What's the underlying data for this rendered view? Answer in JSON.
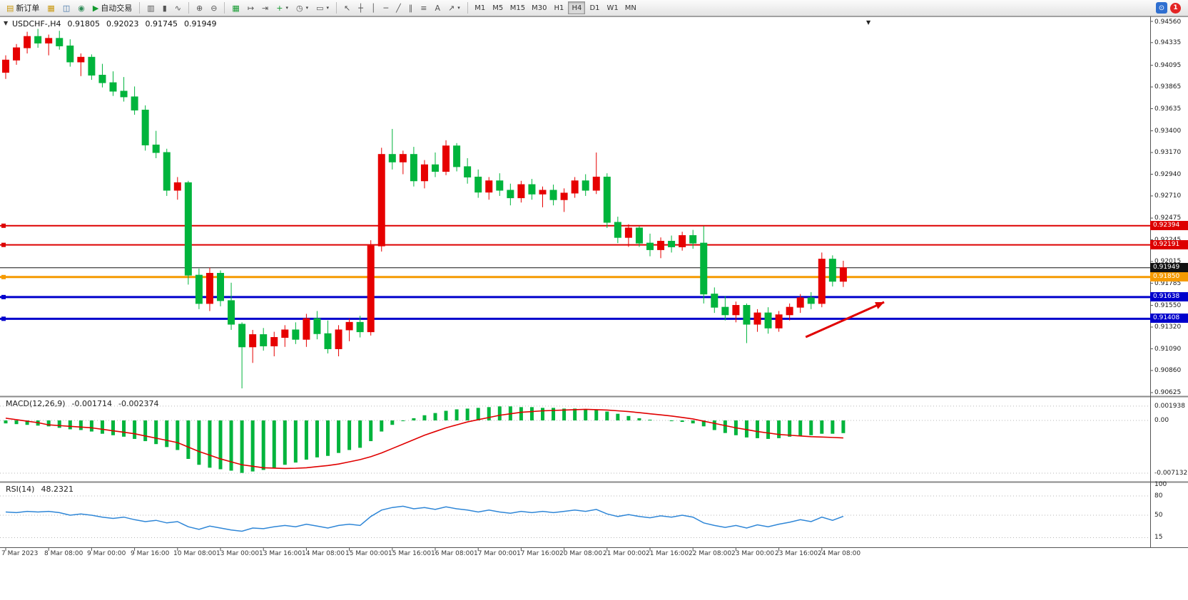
{
  "toolbar": {
    "new_order_label": "新订单",
    "autotrading_label": "自动交易",
    "timeframes": [
      "M1",
      "M5",
      "M15",
      "M30",
      "H1",
      "H4",
      "D1",
      "W1",
      "MN"
    ],
    "active_timeframe": "H4",
    "notification_count": "1"
  },
  "chart_data": {
    "type": "candlestick",
    "header": {
      "symbol_period": "USDCHF-,H4",
      "open": "0.91805",
      "high": "0.92023",
      "low": "0.91745",
      "close": "0.91949"
    },
    "up_color": "#e60000",
    "down_color": "#00b43c",
    "ylim": [
      0.90625,
      0.9456
    ],
    "price_tick_labels": [
      "0.94560",
      "0.94335",
      "0.94095",
      "0.93865",
      "0.93635",
      "0.93400",
      "0.93170",
      "0.92940",
      "0.92710",
      "0.92475",
      "0.92245",
      "0.92015",
      "0.91785",
      "0.91550",
      "0.91320",
      "0.91090",
      "0.90860",
      "0.90625"
    ],
    "time_labels": [
      "7 Mar 2023",
      "8 Mar 08:00",
      "9 Mar 00:00",
      "9 Mar 16:00",
      "10 Mar 08:00",
      "13 Mar 00:00",
      "13 Mar 16:00",
      "14 Mar 08:00",
      "15 Mar 00:00",
      "15 Mar 16:00",
      "16 Mar 08:00",
      "17 Mar 00:00",
      "17 Mar 16:00",
      "20 Mar 08:00",
      "21 Mar 00:00",
      "21 Mar 16:00",
      "22 Mar 08:00",
      "23 Mar 00:00",
      "23 Mar 16:00",
      "24 Mar 08:00"
    ],
    "label_every_n_candles": 4,
    "candles": [
      [
        0.9402,
        0.942,
        0.9395,
        0.9415
      ],
      [
        0.9415,
        0.9432,
        0.941,
        0.9428
      ],
      [
        0.9428,
        0.9445,
        0.9422,
        0.944
      ],
      [
        0.944,
        0.9448,
        0.9428,
        0.9433
      ],
      [
        0.9433,
        0.9442,
        0.942,
        0.9438
      ],
      [
        0.9438,
        0.9446,
        0.9426,
        0.943
      ],
      [
        0.943,
        0.9437,
        0.9408,
        0.9413
      ],
      [
        0.9413,
        0.9422,
        0.9398,
        0.9418
      ],
      [
        0.9418,
        0.9421,
        0.9394,
        0.9399
      ],
      [
        0.9399,
        0.9411,
        0.9386,
        0.9391
      ],
      [
        0.9391,
        0.9403,
        0.9377,
        0.9382
      ],
      [
        0.9382,
        0.9397,
        0.9371,
        0.9376
      ],
      [
        0.9376,
        0.9387,
        0.9357,
        0.9362
      ],
      [
        0.9362,
        0.9367,
        0.9319,
        0.9325
      ],
      [
        0.9325,
        0.934,
        0.9311,
        0.9317
      ],
      [
        0.9317,
        0.9321,
        0.9271,
        0.9277
      ],
      [
        0.9277,
        0.9291,
        0.9267,
        0.9285
      ],
      [
        0.9285,
        0.9287,
        0.9177,
        0.9187
      ],
      [
        0.9187,
        0.9194,
        0.9151,
        0.9157
      ],
      [
        0.9157,
        0.9195,
        0.9149,
        0.9189
      ],
      [
        0.9189,
        0.9192,
        0.9154,
        0.916
      ],
      [
        0.916,
        0.9179,
        0.9129,
        0.9135
      ],
      [
        0.9135,
        0.9137,
        0.9067,
        0.9111
      ],
      [
        0.9111,
        0.9129,
        0.9094,
        0.9124
      ],
      [
        0.9124,
        0.9131,
        0.9107,
        0.9112
      ],
      [
        0.9112,
        0.9127,
        0.9101,
        0.9121
      ],
      [
        0.9121,
        0.9134,
        0.9111,
        0.9129
      ],
      [
        0.9129,
        0.9137,
        0.9114,
        0.9119
      ],
      [
        0.9119,
        0.9146,
        0.9111,
        0.9141
      ],
      [
        0.9141,
        0.9149,
        0.9119,
        0.9125
      ],
      [
        0.9125,
        0.9139,
        0.9104,
        0.9109
      ],
      [
        0.9109,
        0.9134,
        0.9101,
        0.9129
      ],
      [
        0.9129,
        0.9141,
        0.9117,
        0.9137
      ],
      [
        0.9137,
        0.9144,
        0.9121,
        0.9127
      ],
      [
        0.9127,
        0.9224,
        0.9123,
        0.9218
      ],
      [
        0.9218,
        0.9322,
        0.9212,
        0.9315
      ],
      [
        0.9315,
        0.9342,
        0.9299,
        0.9307
      ],
      [
        0.9307,
        0.9319,
        0.9294,
        0.9315
      ],
      [
        0.9315,
        0.9323,
        0.9281,
        0.9287
      ],
      [
        0.9287,
        0.9309,
        0.9279,
        0.9304
      ],
      [
        0.9304,
        0.9317,
        0.9291,
        0.9297
      ],
      [
        0.9297,
        0.933,
        0.9293,
        0.9324
      ],
      [
        0.9324,
        0.9327,
        0.9297,
        0.9302
      ],
      [
        0.9302,
        0.9311,
        0.9284,
        0.9291
      ],
      [
        0.9291,
        0.9299,
        0.9269,
        0.9275
      ],
      [
        0.9275,
        0.9291,
        0.9267,
        0.9287
      ],
      [
        0.9287,
        0.9295,
        0.9271,
        0.9277
      ],
      [
        0.9277,
        0.9284,
        0.9261,
        0.9269
      ],
      [
        0.9269,
        0.9287,
        0.9264,
        0.9283
      ],
      [
        0.9283,
        0.9289,
        0.9267,
        0.9273
      ],
      [
        0.9273,
        0.9281,
        0.9259,
        0.9277
      ],
      [
        0.9277,
        0.9283,
        0.9261,
        0.9267
      ],
      [
        0.9267,
        0.9279,
        0.9254,
        0.9274
      ],
      [
        0.9274,
        0.9291,
        0.9269,
        0.9287
      ],
      [
        0.9287,
        0.9294,
        0.9271,
        0.9277
      ],
      [
        0.9277,
        0.9317,
        0.9273,
        0.9291
      ],
      [
        0.9291,
        0.9295,
        0.9237,
        0.9243
      ],
      [
        0.9243,
        0.9249,
        0.9221,
        0.9227
      ],
      [
        0.9227,
        0.9241,
        0.9217,
        0.9237
      ],
      [
        0.9237,
        0.9239,
        0.9217,
        0.9221
      ],
      [
        0.9221,
        0.9231,
        0.9207,
        0.9214
      ],
      [
        0.9214,
        0.9227,
        0.9205,
        0.9223
      ],
      [
        0.9223,
        0.9229,
        0.9211,
        0.9217
      ],
      [
        0.9217,
        0.9233,
        0.9213,
        0.9229
      ],
      [
        0.9229,
        0.9235,
        0.9215,
        0.9221
      ],
      [
        0.9221,
        0.9239,
        0.9157,
        0.9167
      ],
      [
        0.9167,
        0.9174,
        0.9147,
        0.9153
      ],
      [
        0.9153,
        0.9165,
        0.9139,
        0.9145
      ],
      [
        0.9145,
        0.9159,
        0.9137,
        0.9155
      ],
      [
        0.9155,
        0.9157,
        0.9115,
        0.9135
      ],
      [
        0.9135,
        0.9151,
        0.9127,
        0.9147
      ],
      [
        0.9147,
        0.9153,
        0.9125,
        0.9131
      ],
      [
        0.9131,
        0.9149,
        0.9127,
        0.9145
      ],
      [
        0.9145,
        0.9157,
        0.9139,
        0.9153
      ],
      [
        0.9153,
        0.9167,
        0.9147,
        0.9163
      ],
      [
        0.9163,
        0.9169,
        0.9151,
        0.9157
      ],
      [
        0.9157,
        0.9211,
        0.9153,
        0.9204
      ],
      [
        0.9204,
        0.9208,
        0.9175,
        0.91805
      ],
      [
        0.91805,
        0.92023,
        0.91745,
        0.91949
      ]
    ],
    "levels": [
      {
        "price": 0.92394,
        "label": "0.92394",
        "color": "#dd0000",
        "width": 2,
        "handle": true
      },
      {
        "price": 0.92191,
        "label": "0.92191",
        "color": "#dd0000",
        "width": 2,
        "handle": true
      },
      {
        "price": 0.91949,
        "label": "0.91949",
        "color": "#111111",
        "width": 1,
        "handle": false
      },
      {
        "price": 0.9185,
        "label": "0.91850",
        "color": "#f59a00",
        "width": 3,
        "handle": true
      },
      {
        "price": 0.91638,
        "label": "0.91638",
        "color": "#0000cc",
        "width": 3,
        "handle": true
      },
      {
        "price": 0.91408,
        "label": "0.91408",
        "color": "#0000cc",
        "width": 3,
        "handle": true
      }
    ],
    "bid_price": 0.91949,
    "arrow": {
      "i1": 74.5,
      "p1": 0.91214,
      "i2": 81.8,
      "p2": 0.91584,
      "color": "#e00000"
    },
    "macd": {
      "label": "MACD(12,26,9)",
      "value_main": "-0.001714",
      "value_signal": "-0.002374",
      "tick_labels": [
        "0.001938",
        "0.00",
        "-0.007132"
      ],
      "hist_color": "#00b43c",
      "signal_color": "#e00000",
      "histogram": [
        -0.0004,
        -0.0005,
        -0.0006,
        -0.0007,
        -0.0008,
        -0.001,
        -0.0012,
        -0.0013,
        -0.0015,
        -0.0018,
        -0.002,
        -0.0022,
        -0.0025,
        -0.0028,
        -0.0032,
        -0.0036,
        -0.004,
        -0.0052,
        -0.006,
        -0.0064,
        -0.0066,
        -0.0068,
        -0.0071,
        -0.0069,
        -0.0067,
        -0.0064,
        -0.006,
        -0.0057,
        -0.0053,
        -0.005,
        -0.0048,
        -0.0044,
        -0.004,
        -0.0037,
        -0.0028,
        -0.0015,
        -0.0006,
        -0.0001,
        0.0003,
        0.0007,
        0.001,
        0.0013,
        0.0015,
        0.0016,
        0.0017,
        0.0018,
        0.0019,
        0.0019,
        0.0018,
        0.0018,
        0.0017,
        0.0017,
        0.0016,
        0.0016,
        0.0015,
        0.0015,
        0.0012,
        0.0009,
        0.0006,
        0.0003,
        0.0001,
        0.0,
        -0.0001,
        -0.0002,
        -0.0004,
        -0.0008,
        -0.0013,
        -0.0017,
        -0.002,
        -0.0023,
        -0.0024,
        -0.0025,
        -0.0024,
        -0.0022,
        -0.0021,
        -0.002,
        -0.0018,
        -0.0018,
        -0.001714
      ],
      "signal": [
        0.0003,
        0.0001,
        -0.0001,
        -0.0003,
        -0.0006,
        -0.0007,
        -0.0008,
        -0.0009,
        -0.001,
        -0.0012,
        -0.0014,
        -0.0016,
        -0.0018,
        -0.0021,
        -0.0024,
        -0.0027,
        -0.003,
        -0.0036,
        -0.0042,
        -0.0047,
        -0.0052,
        -0.0056,
        -0.006,
        -0.0062,
        -0.0064,
        -0.00645,
        -0.0065,
        -0.00647,
        -0.0064,
        -0.00625,
        -0.0061,
        -0.0059,
        -0.0056,
        -0.0053,
        -0.0049,
        -0.0044,
        -0.0038,
        -0.0032,
        -0.0026,
        -0.002,
        -0.0015,
        -0.001,
        -0.0006,
        -0.0002,
        0.0001,
        0.0004,
        0.0007,
        0.0009,
        0.0011,
        0.0012,
        0.0013,
        0.00135,
        0.0014,
        0.00145,
        0.0015,
        0.00145,
        0.0014,
        0.0013,
        0.0012,
        0.00105,
        0.0009,
        0.00075,
        0.0006,
        0.0004,
        0.0002,
        -0.0001,
        -0.0004,
        -0.0007,
        -0.001,
        -0.00125,
        -0.0015,
        -0.0017,
        -0.0019,
        -0.002,
        -0.0021,
        -0.0022,
        -0.00225,
        -0.0023,
        -0.00237
      ]
    },
    "rsi": {
      "label": "RSI(14)",
      "value": "48.2321",
      "scale_labels": [
        "100",
        "80",
        "50",
        "15"
      ],
      "levels": [
        80,
        50,
        15
      ],
      "range": [
        0,
        100
      ],
      "color": "#2e86d7",
      "series": [
        55,
        54,
        56,
        55,
        56,
        54,
        50,
        52,
        50,
        47,
        45,
        47,
        43,
        40,
        42,
        38,
        40,
        32,
        28,
        33,
        30,
        27,
        25,
        30,
        29,
        32,
        34,
        32,
        36,
        33,
        30,
        34,
        36,
        34,
        48,
        58,
        62,
        64,
        60,
        62,
        59,
        63,
        60,
        58,
        55,
        58,
        55,
        53,
        56,
        54,
        56,
        54,
        56,
        58,
        56,
        59,
        52,
        48,
        51,
        48,
        46,
        49,
        47,
        50,
        47,
        38,
        34,
        31,
        34,
        30,
        35,
        32,
        36,
        39,
        43,
        40,
        47,
        42,
        48.23
      ]
    }
  }
}
